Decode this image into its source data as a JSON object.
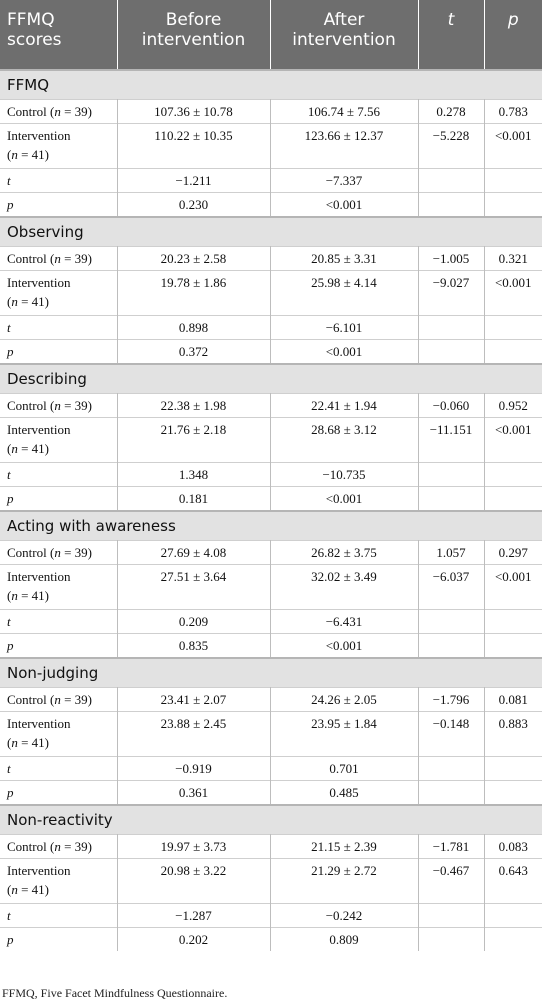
{
  "header": {
    "col1": "FFMQ scores",
    "col2": "Before intervention",
    "col3": "After intervention",
    "col4": "t",
    "col5": "p"
  },
  "row_labels": {
    "control_prefix": "Control (",
    "control_n": "n",
    "control_suffix": " = 39)",
    "intervention_line1": "Intervention",
    "intervention_paren_open": "(",
    "intervention_n": "n",
    "intervention_suffix": " = 41)",
    "t": "t",
    "p": "p"
  },
  "sections": [
    {
      "title": "FFMQ",
      "control": {
        "before": "107.36 ± 10.78",
        "after": "106.74 ± 7.56",
        "t": "0.278",
        "p": "0.783"
      },
      "intervention": {
        "before": "110.22 ± 10.35",
        "after": "123.66 ± 12.37",
        "t": "−5.228",
        "p": "<0.001"
      },
      "t_row": {
        "before": "−1.211",
        "after": "−7.337"
      },
      "p_row": {
        "before": "0.230",
        "after": "<0.001"
      }
    },
    {
      "title": "Observing",
      "control": {
        "before": "20.23 ± 2.58",
        "after": "20.85 ± 3.31",
        "t": "−1.005",
        "p": "0.321"
      },
      "intervention": {
        "before": "19.78 ± 1.86",
        "after": "25.98 ± 4.14",
        "t": "−9.027",
        "p": "<0.001"
      },
      "t_row": {
        "before": "0.898",
        "after": "−6.101"
      },
      "p_row": {
        "before": "0.372",
        "after": "<0.001"
      }
    },
    {
      "title": "Describing",
      "control": {
        "before": "22.38 ± 1.98",
        "after": "22.41 ± 1.94",
        "t": "−0.060",
        "p": "0.952"
      },
      "intervention": {
        "before": "21.76 ± 2.18",
        "after": "28.68 ± 3.12",
        "t": "−11.151",
        "p": "<0.001"
      },
      "t_row": {
        "before": "1.348",
        "after": "−10.735"
      },
      "p_row": {
        "before": "0.181",
        "after": "<0.001"
      }
    },
    {
      "title": "Acting with awareness",
      "control": {
        "before": "27.69 ± 4.08",
        "after": "26.82 ± 3.75",
        "t": "1.057",
        "p": "0.297"
      },
      "intervention": {
        "before": "27.51 ± 3.64",
        "after": "32.02 ± 3.49",
        "t": "−6.037",
        "p": "<0.001"
      },
      "t_row": {
        "before": "0.209",
        "after": "−6.431"
      },
      "p_row": {
        "before": "0.835",
        "after": "<0.001"
      }
    },
    {
      "title": "Non-judging",
      "control": {
        "before": "23.41 ± 2.07",
        "after": "24.26 ± 2.05",
        "t": "−1.796",
        "p": "0.081"
      },
      "intervention": {
        "before": "23.88 ± 2.45",
        "after": "23.95 ± 1.84",
        "t": "−0.148",
        "p": "0.883"
      },
      "t_row": {
        "before": "−0.919",
        "after": "0.701"
      },
      "p_row": {
        "before": "0.361",
        "after": "0.485"
      }
    },
    {
      "title": "Non-reactivity",
      "control": {
        "before": "19.97 ± 3.73",
        "after": "21.15 ± 2.39",
        "t": "−1.781",
        "p": "0.083"
      },
      "intervention": {
        "before": "20.98 ± 3.22",
        "after": "21.29 ± 2.72",
        "t": "−0.467",
        "p": "0.643"
      },
      "t_row": {
        "before": "−1.287",
        "after": "−0.242"
      },
      "p_row": {
        "before": "0.202",
        "after": "0.809"
      }
    }
  ],
  "footnote": "FFMQ, Five Facet Mindfulness Questionnaire.",
  "colors": {
    "header_bg": "#6e6e6e",
    "section_bg": "#e2e2e2"
  }
}
